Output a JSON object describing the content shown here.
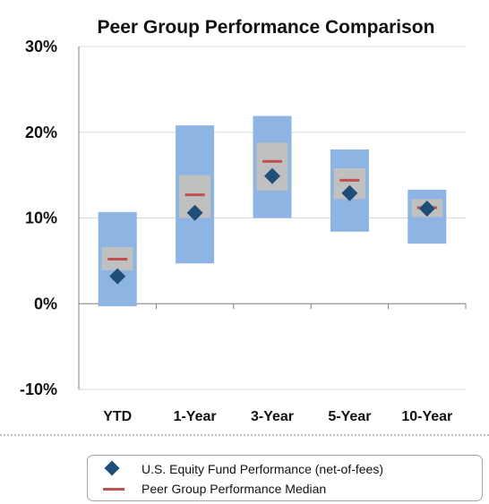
{
  "chart_data": {
    "type": "floating-bar-range",
    "title": "Peer Group Performance Comparison",
    "categories": [
      "YTD",
      "1-Year",
      "3-Year",
      "5-Year",
      "10-Year"
    ],
    "ylim": [
      -10,
      30
    ],
    "yticks": [
      -10,
      0,
      10,
      20,
      30
    ],
    "ytick_labels": [
      "-10%",
      "0%",
      "10%",
      "20%",
      "30%"
    ],
    "grid": true,
    "legend_position": "bottom",
    "colors": {
      "outer_range": "#8eb4e3",
      "inner_range": "#c0c0c0",
      "fund_marker": "#1f4e79",
      "median_line": "#c0504d",
      "grid": "#d9d9d9",
      "axis": "#7f7f7f"
    },
    "peer_range_outer": [
      {
        "low": -0.3,
        "high": 10.7
      },
      {
        "low": 4.7,
        "high": 20.8
      },
      {
        "low": 10.0,
        "high": 21.9
      },
      {
        "low": 8.4,
        "high": 18.0
      },
      {
        "low": 7.0,
        "high": 13.3
      }
    ],
    "peer_range_inner": [
      {
        "low": 3.9,
        "high": 6.6
      },
      {
        "low": 10.0,
        "high": 15.0
      },
      {
        "low": 13.2,
        "high": 18.8
      },
      {
        "low": 12.2,
        "high": 15.8
      },
      {
        "low": 10.1,
        "high": 12.2
      }
    ],
    "series": [
      {
        "name": "U.S. Equity Fund Performance (net-of-fees)",
        "marker": "diamond",
        "values": [
          3.2,
          10.6,
          14.9,
          12.9,
          11.1
        ]
      },
      {
        "name": "Peer Group Performance Median",
        "marker": "dash",
        "values": [
          5.2,
          12.7,
          16.6,
          14.4,
          11.2
        ]
      }
    ]
  }
}
